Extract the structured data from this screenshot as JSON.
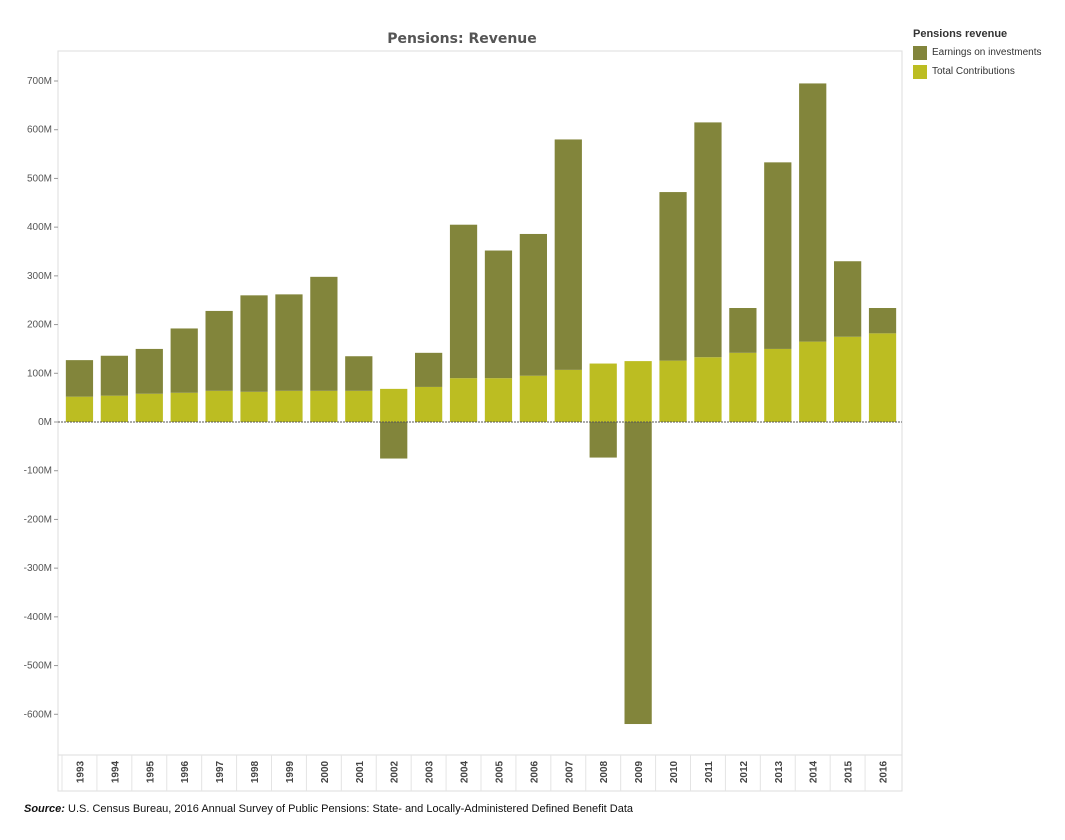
{
  "chart_data": {
    "type": "bar",
    "stacked": true,
    "title": "Pensions: Revenue",
    "xlabel": "",
    "ylabel": "",
    "categories": [
      "1993",
      "1994",
      "1995",
      "1996",
      "1997",
      "1998",
      "1999",
      "2000",
      "2001",
      "2002",
      "2003",
      "2004",
      "2005",
      "2006",
      "2007",
      "2008",
      "2009",
      "2010",
      "2011",
      "2012",
      "2013",
      "2014",
      "2015",
      "2016"
    ],
    "series": [
      {
        "name": "Total Contributions",
        "color": "#bcbd22",
        "values": [
          52,
          54,
          58,
          60,
          64,
          62,
          64,
          64,
          64,
          68,
          72,
          90,
          90,
          95,
          107,
          120,
          125,
          126,
          133,
          142,
          150,
          165,
          175,
          182
        ]
      },
      {
        "name": "Earnings on investments",
        "color": "#82853b",
        "values": [
          75,
          82,
          92,
          132,
          164,
          198,
          198,
          234,
          71,
          -75,
          70,
          315,
          262,
          291,
          473,
          -73,
          -620,
          346,
          482,
          92,
          383,
          530,
          155,
          52
        ]
      }
    ],
    "ylim": [
      -680,
      760
    ],
    "yticks": [
      -600,
      -500,
      -400,
      -300,
      -200,
      -100,
      0,
      100,
      200,
      300,
      400,
      500,
      600,
      700
    ],
    "ytick_labels": [
      "-600M",
      "-500M",
      "-400M",
      "-300M",
      "-200M",
      "-100M",
      "0M",
      "100M",
      "200M",
      "300M",
      "400M",
      "500M",
      "600M",
      "700M"
    ],
    "legend": {
      "title": "Pensions revenue",
      "placement": "right",
      "items": [
        {
          "label": "Earnings on investments",
          "color": "#82853b"
        },
        {
          "label": "Total Contributions",
          "color": "#bcbd22"
        }
      ]
    },
    "grid": false
  },
  "source": {
    "label": "Source:",
    "text": " U.S. Census Bureau, 2016 Annual Survey of Public Pensions: State- and Locally-Administered Defined Benefit Data"
  }
}
